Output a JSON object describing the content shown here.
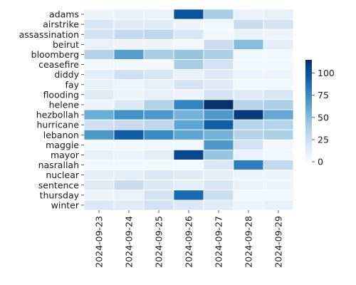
{
  "chart_data": {
    "type": "heatmap",
    "title": "",
    "xlabel": "",
    "ylabel": "",
    "x": [
      "2024-09-23",
      "2024-09-24",
      "2024-09-25",
      "2024-09-26",
      "2024-09-27",
      "2024-09-28",
      "2024-09-29"
    ],
    "y": [
      "adams",
      "airstrike",
      "assassination",
      "beirut",
      "bloomberg",
      "ceasefire",
      "diddy",
      "fay",
      "flooding",
      "helene",
      "hezbollah",
      "hurricane",
      "lebanon",
      "maggie",
      "mayor",
      "nasrallah",
      "nuclear",
      "sentence",
      "thursday",
      "winter"
    ],
    "values": [
      [
        6,
        10,
        8,
        100,
        40,
        8,
        10
      ],
      [
        18,
        14,
        14,
        6,
        4,
        28,
        20
      ],
      [
        22,
        30,
        32,
        18,
        4,
        8,
        6
      ],
      [
        8,
        6,
        6,
        4,
        26,
        50,
        12
      ],
      [
        35,
        65,
        40,
        45,
        38,
        4,
        3
      ],
      [
        4,
        4,
        4,
        40,
        22,
        4,
        4
      ],
      [
        12,
        24,
        18,
        8,
        14,
        6,
        6
      ],
      [
        10,
        6,
        10,
        20,
        14,
        4,
        4
      ],
      [
        14,
        6,
        10,
        6,
        20,
        14,
        18
      ],
      [
        6,
        16,
        36,
        78,
        115,
        34,
        38
      ],
      [
        58,
        72,
        68,
        55,
        68,
        110,
        60
      ],
      [
        24,
        28,
        32,
        62,
        95,
        35,
        35
      ],
      [
        68,
        95,
        75,
        62,
        55,
        35,
        38
      ],
      [
        4,
        3,
        4,
        4,
        68,
        22,
        3
      ],
      [
        10,
        6,
        12,
        105,
        45,
        8,
        4
      ],
      [
        3,
        3,
        3,
        3,
        16,
        80,
        30
      ],
      [
        12,
        12,
        16,
        14,
        12,
        6,
        6
      ],
      [
        14,
        28,
        16,
        12,
        18,
        8,
        6
      ],
      [
        6,
        8,
        20,
        90,
        26,
        4,
        4
      ],
      [
        16,
        14,
        22,
        16,
        14,
        6,
        8
      ]
    ],
    "vmin": 0,
    "vmax": 115,
    "colormap": "Blues",
    "colorbar": {
      "ticks": [
        0,
        25,
        50,
        75,
        100
      ],
      "position": "right"
    },
    "grid": false
  }
}
